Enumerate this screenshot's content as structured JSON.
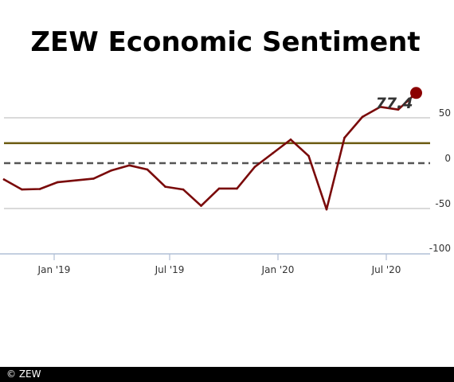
{
  "chart_data": {
    "type": "line",
    "title": "ZEW Economic Sentiment",
    "xlabel": "",
    "ylabel": "",
    "x_tick_labels": [
      "Jan '19",
      "Jul '19",
      "Jan '20",
      "Jul '20"
    ],
    "y_ticks": [
      50,
      0,
      -50,
      -100
    ],
    "ylim": [
      -100,
      77.4
    ],
    "grid": true,
    "x": [
      "2018-10",
      "2018-11",
      "2018-12",
      "2019-01",
      "2019-02",
      "2019-03",
      "2019-04",
      "2019-05",
      "2019-06",
      "2019-07",
      "2019-08",
      "2019-09",
      "2019-10",
      "2019-11",
      "2019-12",
      "2020-01",
      "2020-02",
      "2020-03",
      "2020-04",
      "2020-05",
      "2020-06",
      "2020-07",
      "2020-08",
      "2020-09"
    ],
    "series": [
      {
        "values": [
          -18,
          -29,
          -28.5,
          -21,
          -19,
          -17,
          -8,
          -2.5,
          -7,
          -26,
          -29,
          -47,
          -28,
          -28,
          -4,
          11,
          26,
          8,
          -51,
          28,
          51,
          62,
          59,
          77.4
        ]
      }
    ],
    "reference_line": 22,
    "zero_line": 0,
    "last_value_label": "77.4",
    "colors": {
      "line": "#7a0a0a",
      "marker": "#8b0000",
      "reference_line": "#6b5a10",
      "zero_line": "#555555",
      "grid": "#c4c4c4",
      "axis": "#b0bfd6"
    }
  },
  "footer": {
    "credit": "© ZEW"
  }
}
